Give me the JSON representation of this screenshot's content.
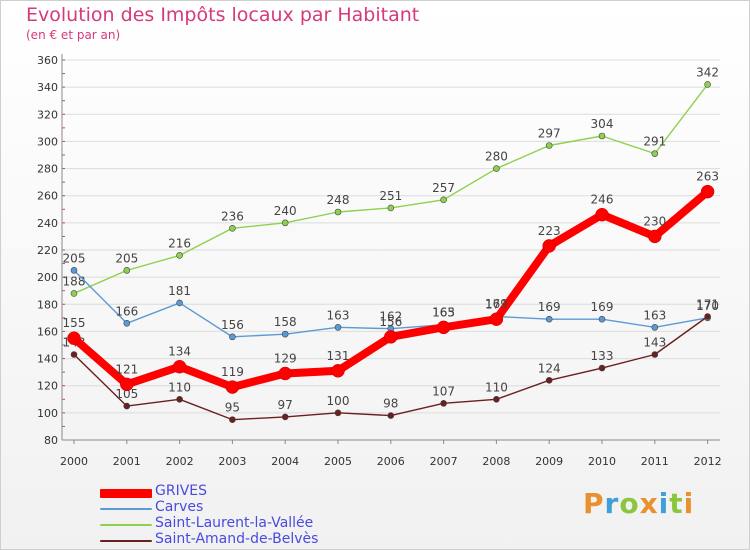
{
  "title": "Evolution des Impôts locaux par Habitant",
  "subtitle": "(en € et par an)",
  "logo_text": "Proxiti",
  "colors": {
    "title": "#d53a7a",
    "axis": "#8a8a8a",
    "grid": "#dcdcdc",
    "legend_text": "#4a4ae0"
  },
  "chart_data": {
    "type": "line",
    "title": "Evolution des Impôts locaux par Habitant",
    "subtitle": "(en € et par an)",
    "categories": [
      "2000",
      "2001",
      "2002",
      "2003",
      "2004",
      "2005",
      "2006",
      "2007",
      "2008",
      "2009",
      "2010",
      "2011",
      "2012"
    ],
    "ylim": [
      80,
      360
    ],
    "yticks": [
      80,
      100,
      120,
      140,
      160,
      180,
      200,
      220,
      240,
      260,
      280,
      300,
      320,
      340,
      360
    ],
    "grid": "horizontal",
    "legend_position": "bottom-left",
    "series": [
      {
        "name": "Saint-Laurent-la-Vallée",
        "color": "#8fd14f",
        "values": [
          188,
          205,
          216,
          236,
          240,
          248,
          251,
          257,
          280,
          297,
          304,
          291,
          342
        ]
      },
      {
        "name": "Carves",
        "color": "#5b9bd5",
        "values": [
          205,
          166,
          181,
          156,
          158,
          163,
          162,
          165,
          171,
          169,
          169,
          163,
          170
        ]
      },
      {
        "name": "Saint-Amand-de-Belvès",
        "color": "#6b1f1f",
        "values": [
          143,
          105,
          110,
          95,
          97,
          100,
          98,
          107,
          110,
          124,
          133,
          143,
          171
        ]
      },
      {
        "name": "GRIVES",
        "color": "#ff0000",
        "values": [
          155,
          121,
          134,
          119,
          129,
          131,
          156,
          163,
          169,
          223,
          246,
          230,
          263
        ]
      }
    ],
    "legend_order": [
      "GRIVES",
      "Carves",
      "Saint-Laurent-la-Vallée",
      "Saint-Amand-de-Belvès"
    ]
  }
}
